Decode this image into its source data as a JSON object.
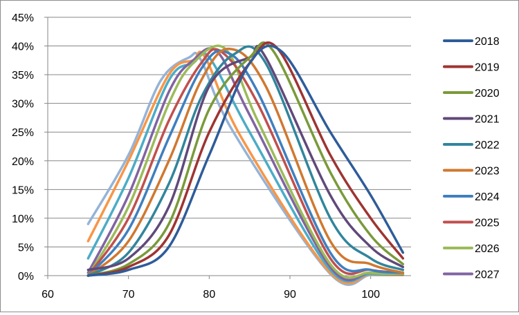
{
  "chart_data": {
    "type": "line",
    "title": "",
    "xlabel": "",
    "ylabel": "",
    "xlim": [
      60,
      105
    ],
    "ylim": [
      0,
      45
    ],
    "x_ticks": [
      "60",
      "70",
      "80",
      "90",
      "100"
    ],
    "y_ticks": [
      "0%",
      "5%",
      "10%",
      "15%",
      "20%",
      "25%",
      "30%",
      "35%",
      "40%",
      "45%"
    ],
    "grid": "horizontal",
    "legend": "right",
    "series": [
      {
        "name": "2018",
        "color": "#2E5C9A",
        "x": [
          65,
          70,
          75,
          80,
          85,
          89,
          95,
          100,
          104
        ],
        "y": [
          0,
          1,
          5,
          21,
          37,
          39,
          25,
          14,
          4
        ]
      },
      {
        "name": "2019",
        "color": "#9E3432",
        "x": [
          65,
          70,
          75,
          80,
          85,
          88.5,
          95,
          100,
          104
        ],
        "y": [
          0,
          1.5,
          7,
          25,
          37,
          39.5,
          21,
          10,
          3
        ]
      },
      {
        "name": "2020",
        "color": "#7A9A3A",
        "x": [
          65,
          70,
          75,
          80,
          85,
          88,
          95,
          100,
          104
        ],
        "y": [
          0,
          2,
          9,
          29,
          38,
          39,
          18,
          7,
          2
        ]
      },
      {
        "name": "2021",
        "color": "#60497A",
        "x": [
          65,
          70,
          75,
          80,
          85,
          87,
          95,
          100,
          104
        ],
        "y": [
          1,
          3,
          12,
          33,
          38,
          38,
          14,
          5,
          1.5
        ]
      },
      {
        "name": "2022",
        "color": "#31859C",
        "x": [
          65,
          70,
          75,
          79,
          83,
          87,
          95,
          100,
          104
        ],
        "y": [
          0,
          4,
          16,
          31,
          38.5,
          37,
          10,
          3,
          1
        ]
      },
      {
        "name": "2023",
        "color": "#D0782F",
        "x": [
          65,
          70,
          75,
          79,
          82.5,
          87,
          95,
          100,
          104
        ],
        "y": [
          0,
          6,
          20,
          34,
          39.5,
          33,
          6,
          2,
          0.5
        ]
      },
      {
        "name": "2024",
        "color": "#3F7FBF",
        "x": [
          65,
          70,
          75,
          79,
          82,
          86,
          95,
          100,
          104
        ],
        "y": [
          0,
          8,
          24,
          36,
          39,
          32,
          4,
          1,
          0.5
        ]
      },
      {
        "name": "2025",
        "color": "#C0504D",
        "x": [
          65,
          70,
          75,
          79,
          81.5,
          86,
          95,
          100,
          104
        ],
        "y": [
          0,
          10,
          27,
          37,
          39,
          30,
          3,
          1,
          0.5
        ]
      },
      {
        "name": "2026",
        "color": "#9BBB59",
        "x": [
          65,
          70,
          75,
          78,
          82,
          86,
          95,
          100,
          104
        ],
        "y": [
          0,
          12,
          30,
          37,
          39.5,
          27,
          2,
          0.5,
          0.3
        ]
      },
      {
        "name": "2027",
        "color": "#8064A2",
        "x": [
          65,
          70,
          75,
          78,
          81,
          85,
          95,
          100,
          104
        ],
        "y": [
          0.5,
          14,
          32,
          37.5,
          39,
          28,
          1.5,
          0.5,
          0.2
        ]
      },
      {
        "name": "",
        "color": "#4BACC6",
        "x": [
          65,
          70,
          75,
          78,
          80,
          85,
          95,
          100,
          104
        ],
        "y": [
          3,
          17,
          34,
          37,
          38,
          25,
          1,
          0.3,
          0.2
        ]
      },
      {
        "name": "",
        "color": "#F79646",
        "x": [
          65,
          70,
          75,
          78,
          79.5,
          84,
          95,
          100,
          104
        ],
        "y": [
          6,
          20,
          35,
          37.5,
          38,
          24,
          0.5,
          0.2,
          0.1
        ]
      },
      {
        "name": "",
        "color": "#95B3D7",
        "x": [
          65,
          70,
          74,
          77.5,
          79,
          83,
          95,
          100,
          104
        ],
        "y": [
          9,
          21,
          34,
          38,
          37.5,
          25,
          0.3,
          0.1,
          0.1
        ]
      }
    ]
  }
}
